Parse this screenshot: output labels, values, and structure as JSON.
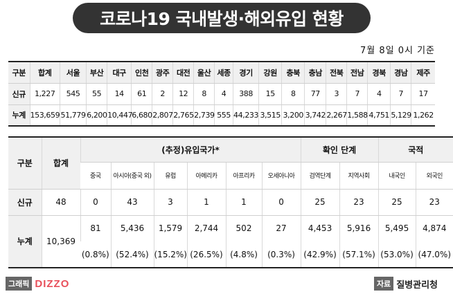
{
  "title": "코로나19 국내발생·해외유입 현황",
  "as_of": "7월 8일 0시 기준",
  "domestic": {
    "headers": [
      "구분",
      "합계",
      "서울",
      "부산",
      "대구",
      "인천",
      "광주",
      "대전",
      "울산",
      "세종",
      "경기",
      "강원",
      "충북",
      "충남",
      "전북",
      "전남",
      "경북",
      "경남",
      "제주"
    ],
    "rows": [
      {
        "label": "신규",
        "values": [
          "1,227",
          "545",
          "55",
          "14",
          "61",
          "2",
          "12",
          "8",
          "4",
          "388",
          "15",
          "8",
          "77",
          "3",
          "7",
          "4",
          "7",
          "17"
        ]
      },
      {
        "label": "누계",
        "values": [
          "153,659",
          "51,779",
          "6,200",
          "10,447",
          "6,680",
          "2,807",
          "2,765",
          "2,739",
          "555",
          "44,233",
          "3,515",
          "3,200",
          "3,742",
          "2,267",
          "1,588",
          "4,751",
          "5,129",
          "1,262"
        ]
      }
    ]
  },
  "overseas": {
    "col_label": "구분",
    "total_label": "합계",
    "group_estimated": "(추정)유입국가*",
    "group_confirm": "확인 단계",
    "group_nationality": "국적",
    "subheaders": [
      "중국",
      "아시아(중국 외)",
      "유럽",
      "아메리카",
      "아프리카",
      "오세아니아",
      "검역단계",
      "지역사회",
      "내국인",
      "외국인"
    ],
    "new": {
      "label": "신규",
      "total": "48",
      "values": [
        "0",
        "43",
        "3",
        "1",
        "1",
        "0",
        "25",
        "23",
        "25",
        "23"
      ]
    },
    "cumulative": {
      "label": "누계",
      "total": "10,369",
      "values": [
        "81",
        "5,436",
        "1,579",
        "2,744",
        "502",
        "27",
        "4,453",
        "5,916",
        "5,495",
        "4,874"
      ]
    },
    "percent": [
      "(0.8%)",
      "(52.4%)",
      "(15.2%)",
      "(26.5%)",
      "(4.8%)",
      "(0.3%)",
      "(42.9%)",
      "(57.1%)",
      "(53.0%)",
      "(47.0%)"
    ]
  },
  "footer": {
    "graphic_label": "그래픽",
    "brand": "DIZZO",
    "source_label": "자료",
    "source": "질병관리청"
  },
  "colors": {
    "title_bg": "#333333",
    "header_bg": "#f0f0f0",
    "brand": "#e8505b"
  }
}
